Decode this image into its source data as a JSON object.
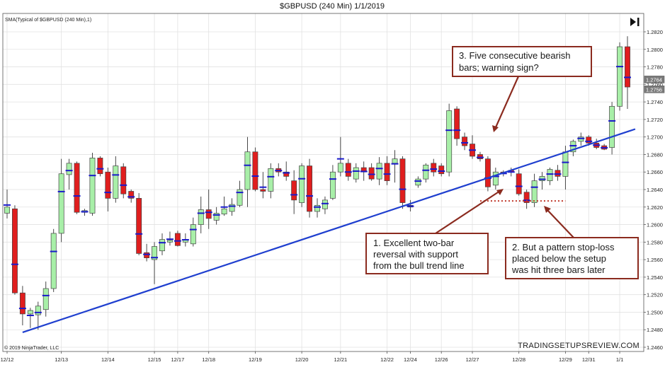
{
  "chart_data": {
    "type": "candlestick",
    "title": "$GBPUSD (240 Min)  1/1/2019",
    "indicator_label": "SMA(Typical of $GBPUSD (240 Min),1)",
    "copyright": "© 2019 NinjaTrader, LLC",
    "brand": "TRADINGSETUPSREVIEW.COM",
    "grid": true,
    "ylim": [
      1.246,
      1.2832
    ],
    "y_ticks": [
      "1.2820",
      "1.2800",
      "1.2780",
      "1.2760",
      "1.2740",
      "1.2720",
      "1.2700",
      "1.2680",
      "1.2660",
      "1.2640",
      "1.2620",
      "1.2600",
      "1.2580",
      "1.2560",
      "1.2540",
      "1.2520",
      "1.2500",
      "1.2480",
      "1.2460"
    ],
    "x_ticks": [
      {
        "label": "12/12",
        "bar": 0
      },
      {
        "label": "12/13",
        "bar": 7
      },
      {
        "label": "12/14",
        "bar": 13
      },
      {
        "label": "12/15",
        "bar": 19
      },
      {
        "label": "12/17",
        "bar": 22
      },
      {
        "label": "12/18",
        "bar": 26
      },
      {
        "label": "12/19",
        "bar": 32
      },
      {
        "label": "12/20",
        "bar": 38
      },
      {
        "label": "12/21",
        "bar": 43
      },
      {
        "label": "12/22",
        "bar": 49
      },
      {
        "label": "12/24",
        "bar": 52
      },
      {
        "label": "12/26",
        "bar": 56
      },
      {
        "label": "12/27",
        "bar": 60
      },
      {
        "label": "12/28",
        "bar": 66
      },
      {
        "label": "12/29",
        "bar": 72
      },
      {
        "label": "12/31",
        "bar": 75
      },
      {
        "label": "1/1",
        "bar": 79
      }
    ],
    "colors": {
      "up": "#a8efa8",
      "down": "#e01e1e",
      "sma": "#1a1acc",
      "trend": "#1f3fcf",
      "annotation": "#8b2b1f",
      "dotted": "#c0392b"
    },
    "candles": [
      {
        "o": 1.2613,
        "h": 1.264,
        "l": 1.2607,
        "c": 1.262
      },
      {
        "o": 1.2618,
        "h": 1.2622,
        "l": 1.252,
        "c": 1.2522
      },
      {
        "o": 1.2522,
        "h": 1.253,
        "l": 1.2485,
        "c": 1.2498
      },
      {
        "o": 1.2498,
        "h": 1.2505,
        "l": 1.2482,
        "c": 1.2502
      },
      {
        "o": 1.2497,
        "h": 1.2512,
        "l": 1.248,
        "c": 1.2507
      },
      {
        "o": 1.2503,
        "h": 1.2535,
        "l": 1.2495,
        "c": 1.2527
      },
      {
        "o": 1.2527,
        "h": 1.2595,
        "l": 1.2523,
        "c": 1.259
      },
      {
        "o": 1.259,
        "h": 1.2675,
        "l": 1.258,
        "c": 1.2658
      },
      {
        "o": 1.2657,
        "h": 1.2675,
        "l": 1.264,
        "c": 1.267
      },
      {
        "o": 1.267,
        "h": 1.2672,
        "l": 1.2612,
        "c": 1.2614
      },
      {
        "o": 1.2614,
        "h": 1.2618,
        "l": 1.261,
        "c": 1.2616
      },
      {
        "o": 1.2613,
        "h": 1.2682,
        "l": 1.261,
        "c": 1.2676
      },
      {
        "o": 1.2676,
        "h": 1.2678,
        "l": 1.2655,
        "c": 1.2658
      },
      {
        "o": 1.266,
        "h": 1.2665,
        "l": 1.2615,
        "c": 1.263
      },
      {
        "o": 1.263,
        "h": 1.2678,
        "l": 1.2625,
        "c": 1.2667
      },
      {
        "o": 1.2666,
        "h": 1.267,
        "l": 1.263,
        "c": 1.2635
      },
      {
        "o": 1.2638,
        "h": 1.264,
        "l": 1.2625,
        "c": 1.263
      },
      {
        "o": 1.263,
        "h": 1.2636,
        "l": 1.2565,
        "c": 1.2567
      },
      {
        "o": 1.2568,
        "h": 1.2578,
        "l": 1.2558,
        "c": 1.2562
      },
      {
        "o": 1.256,
        "h": 1.258,
        "l": 1.2532,
        "c": 1.2575
      },
      {
        "o": 1.257,
        "h": 1.259,
        "l": 1.2565,
        "c": 1.2583
      },
      {
        "o": 1.258,
        "h": 1.2592,
        "l": 1.2576,
        "c": 1.2582
      },
      {
        "o": 1.259,
        "h": 1.2593,
        "l": 1.2575,
        "c": 1.2576
      },
      {
        "o": 1.258,
        "h": 1.259,
        "l": 1.2575,
        "c": 1.2583
      },
      {
        "o": 1.2578,
        "h": 1.2608,
        "l": 1.2575,
        "c": 1.26
      },
      {
        "o": 1.26,
        "h": 1.2632,
        "l": 1.259,
        "c": 1.2617
      },
      {
        "o": 1.2617,
        "h": 1.264,
        "l": 1.2595,
        "c": 1.2607
      },
      {
        "o": 1.2605,
        "h": 1.262,
        "l": 1.26,
        "c": 1.2613
      },
      {
        "o": 1.2612,
        "h": 1.2632,
        "l": 1.261,
        "c": 1.2618
      },
      {
        "o": 1.2615,
        "h": 1.263,
        "l": 1.261,
        "c": 1.2623
      },
      {
        "o": 1.2622,
        "h": 1.265,
        "l": 1.262,
        "c": 1.264
      },
      {
        "o": 1.264,
        "h": 1.27,
        "l": 1.262,
        "c": 1.2683
      },
      {
        "o": 1.2683,
        "h": 1.2688,
        "l": 1.2638,
        "c": 1.264
      },
      {
        "o": 1.264,
        "h": 1.266,
        "l": 1.263,
        "c": 1.2638
      },
      {
        "o": 1.2638,
        "h": 1.267,
        "l": 1.263,
        "c": 1.2664
      },
      {
        "o": 1.2664,
        "h": 1.267,
        "l": 1.2655,
        "c": 1.266
      },
      {
        "o": 1.266,
        "h": 1.2672,
        "l": 1.265,
        "c": 1.2655
      },
      {
        "o": 1.265,
        "h": 1.2662,
        "l": 1.2612,
        "c": 1.2628
      },
      {
        "o": 1.2625,
        "h": 1.267,
        "l": 1.262,
        "c": 1.2667
      },
      {
        "o": 1.2667,
        "h": 1.2675,
        "l": 1.2608,
        "c": 1.2615
      },
      {
        "o": 1.2615,
        "h": 1.263,
        "l": 1.2608,
        "c": 1.2622
      },
      {
        "o": 1.2618,
        "h": 1.2632,
        "l": 1.2612,
        "c": 1.2628
      },
      {
        "o": 1.263,
        "h": 1.2668,
        "l": 1.2628,
        "c": 1.266
      },
      {
        "o": 1.266,
        "h": 1.27,
        "l": 1.2655,
        "c": 1.267
      },
      {
        "o": 1.267,
        "h": 1.2675,
        "l": 1.265,
        "c": 1.2655
      },
      {
        "o": 1.2652,
        "h": 1.267,
        "l": 1.2648,
        "c": 1.2665
      },
      {
        "o": 1.2665,
        "h": 1.2672,
        "l": 1.265,
        "c": 1.266
      },
      {
        "o": 1.2665,
        "h": 1.267,
        "l": 1.265,
        "c": 1.2652
      },
      {
        "o": 1.2652,
        "h": 1.2677,
        "l": 1.2645,
        "c": 1.267
      },
      {
        "o": 1.267,
        "h": 1.2678,
        "l": 1.2645,
        "c": 1.265
      },
      {
        "o": 1.267,
        "h": 1.2685,
        "l": 1.2648,
        "c": 1.2675
      },
      {
        "o": 1.2675,
        "h": 1.2678,
        "l": 1.2618,
        "c": 1.2625
      },
      {
        "o": 1.2622,
        "h": 1.2628,
        "l": 1.2615,
        "c": 1.262
      },
      {
        "o": 1.2645,
        "h": 1.2655,
        "l": 1.2642,
        "c": 1.2652
      },
      {
        "o": 1.2652,
        "h": 1.267,
        "l": 1.2648,
        "c": 1.2668
      },
      {
        "o": 1.267,
        "h": 1.2675,
        "l": 1.2655,
        "c": 1.266
      },
      {
        "o": 1.2667,
        "h": 1.267,
        "l": 1.2655,
        "c": 1.2658
      },
      {
        "o": 1.266,
        "h": 1.2738,
        "l": 1.2655,
        "c": 1.273
      },
      {
        "o": 1.2732,
        "h": 1.2735,
        "l": 1.269,
        "c": 1.2698
      },
      {
        "o": 1.27,
        "h": 1.2705,
        "l": 1.2685,
        "c": 1.269
      },
      {
        "o": 1.2692,
        "h": 1.2702,
        "l": 1.2675,
        "c": 1.2678
      },
      {
        "o": 1.268,
        "h": 1.2683,
        "l": 1.2672,
        "c": 1.2675
      },
      {
        "o": 1.2675,
        "h": 1.2678,
        "l": 1.2638,
        "c": 1.2643
      },
      {
        "o": 1.2645,
        "h": 1.2665,
        "l": 1.264,
        "c": 1.266
      },
      {
        "o": 1.266,
        "h": 1.2662,
        "l": 1.2655,
        "c": 1.2658
      },
      {
        "o": 1.2662,
        "h": 1.2665,
        "l": 1.2655,
        "c": 1.266
      },
      {
        "o": 1.2658,
        "h": 1.2663,
        "l": 1.2633,
        "c": 1.2635
      },
      {
        "o": 1.2637,
        "h": 1.264,
        "l": 1.2618,
        "c": 1.2625
      },
      {
        "o": 1.2625,
        "h": 1.2658,
        "l": 1.262,
        "c": 1.265
      },
      {
        "o": 1.265,
        "h": 1.266,
        "l": 1.264,
        "c": 1.2655
      },
      {
        "o": 1.265,
        "h": 1.2665,
        "l": 1.2645,
        "c": 1.2663
      },
      {
        "o": 1.2662,
        "h": 1.2668,
        "l": 1.265,
        "c": 1.2655
      },
      {
        "o": 1.2655,
        "h": 1.269,
        "l": 1.264,
        "c": 1.2683
      },
      {
        "o": 1.2683,
        "h": 1.2697,
        "l": 1.2678,
        "c": 1.2695
      },
      {
        "o": 1.2695,
        "h": 1.2705,
        "l": 1.269,
        "c": 1.27
      },
      {
        "o": 1.27,
        "h": 1.2702,
        "l": 1.269,
        "c": 1.2693
      },
      {
        "o": 1.2693,
        "h": 1.2698,
        "l": 1.2686,
        "c": 1.2688
      },
      {
        "o": 1.269,
        "h": 1.2692,
        "l": 1.2685,
        "c": 1.2686
      },
      {
        "o": 1.2688,
        "h": 1.274,
        "l": 1.268,
        "c": 1.2735
      },
      {
        "o": 1.2735,
        "h": 1.2808,
        "l": 1.273,
        "c": 1.2803
      },
      {
        "o": 1.2803,
        "h": 1.2815,
        "l": 1.2732,
        "c": 1.2757
      }
    ],
    "price_markers": [
      "1.2764",
      "1.2756"
    ],
    "trend_line": {
      "from": {
        "bar": 2,
        "price": 1.2477
      },
      "to": {
        "bar": 81,
        "price": 1.2709
      }
    },
    "stop_line": {
      "from_bar": 61,
      "to_bar": 72,
      "price": 1.2627
    }
  },
  "annotations": {
    "a1": [
      "1. Excellent two-bar",
      "reversal with support",
      "from the bull trend line"
    ],
    "a2": [
      "2. But a pattern stop-loss",
      "placed below the setup",
      "was hit three bars later"
    ],
    "a3": [
      "3. Five consecutive bearish",
      "bars; warning sign?"
    ]
  }
}
